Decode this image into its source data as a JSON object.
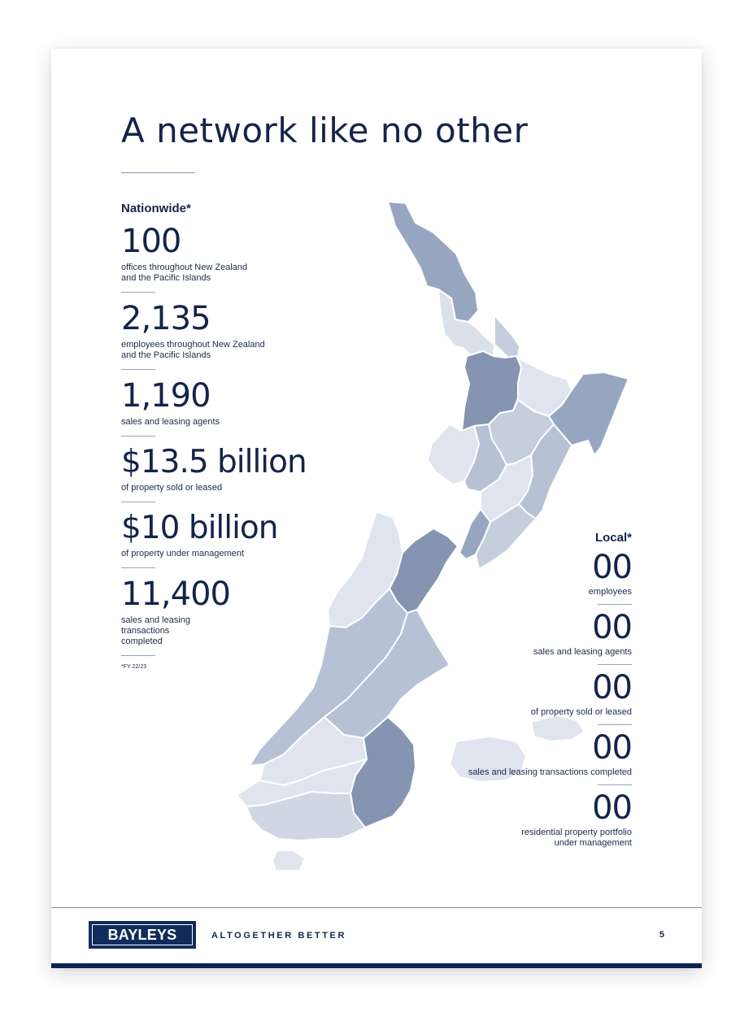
{
  "title": "A network like no other",
  "nationwide": {
    "heading": "Nationwide*",
    "stats": [
      {
        "value": "100",
        "desc": [
          "offices throughout New Zealand",
          "and the Pacific Islands"
        ]
      },
      {
        "value": "2,135",
        "desc": [
          "employees throughout New Zealand",
          "and the Pacific Islands"
        ]
      },
      {
        "value": "1,190",
        "desc": [
          "sales and leasing agents"
        ]
      },
      {
        "value": "$13.5 billion",
        "desc": [
          "of property sold or leased"
        ]
      },
      {
        "value": "$10 billion",
        "desc": [
          "of property under management"
        ]
      },
      {
        "value": "11,400",
        "desc": [
          "sales and leasing",
          "transactions",
          "completed"
        ]
      }
    ],
    "footnote": "*FY 22/23"
  },
  "local": {
    "heading": "Local*",
    "stats": [
      {
        "value": "00",
        "desc": [
          "employees"
        ]
      },
      {
        "value": "00",
        "desc": [
          "sales and leasing agents"
        ]
      },
      {
        "value": "00",
        "desc": [
          "of property sold or leased"
        ]
      },
      {
        "value": "00",
        "desc": [
          "sales and leasing transactions completed"
        ]
      },
      {
        "value": "00",
        "desc": [
          "residential property portfolio",
          "under management"
        ]
      }
    ]
  },
  "map_icon": "new-zealand-regions-map",
  "colors": {
    "navy": "#14244a",
    "region_dark": "#8595b1",
    "region_mid": "#b6c1d4",
    "region_light": "#dfe4ee",
    "brand_blue": "#102c5c"
  },
  "footer": {
    "logo": "BAYLEYS",
    "tagline": "ALTOGETHER BETTER",
    "page_number": "5"
  }
}
